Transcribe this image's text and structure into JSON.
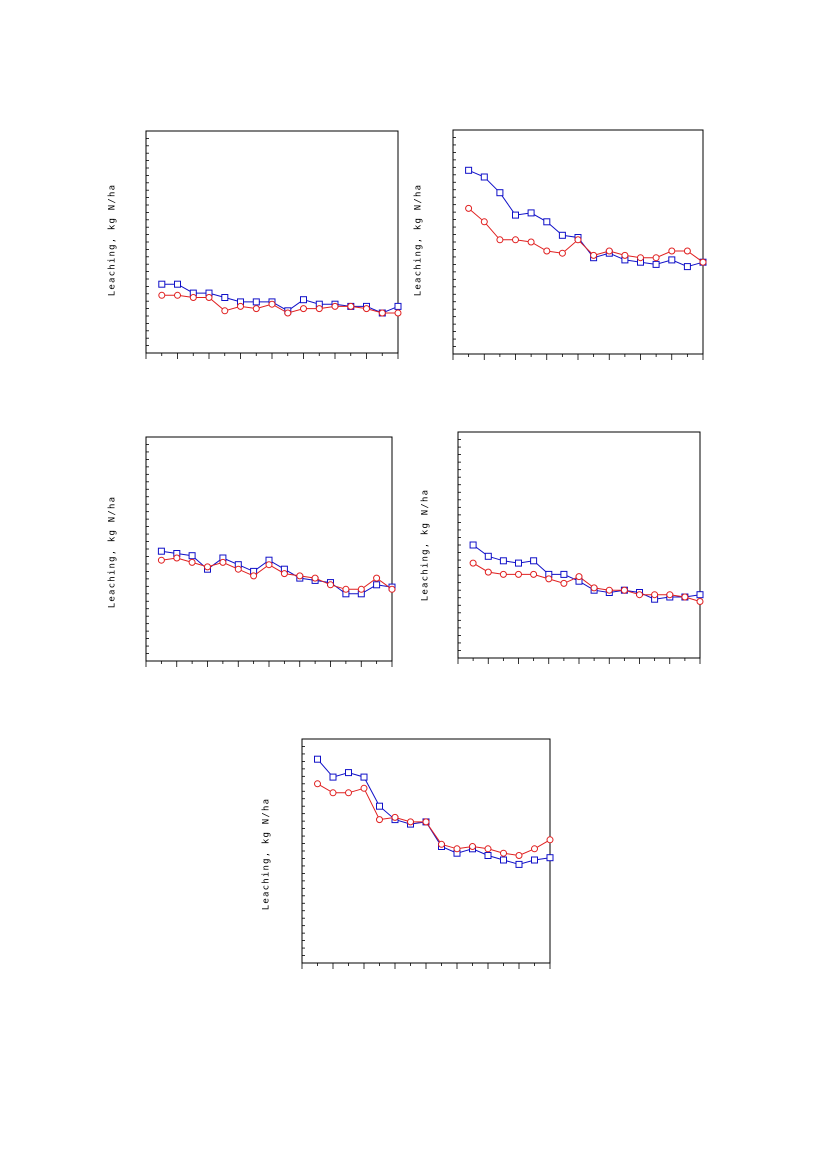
{
  "page": {
    "background": "#ffffff"
  },
  "colors": {
    "series_a": "#1010c8",
    "series_b": "#e02020",
    "frame": "#000000"
  },
  "chart_data": [
    {
      "type": "line",
      "ylabel": "Leaching, kg N/ha",
      "xlim": [
        0,
        16
      ],
      "ylim": [
        0,
        100
      ],
      "x": [
        1,
        2,
        3,
        4,
        5,
        6,
        7,
        8,
        9,
        10,
        11,
        12,
        13,
        14,
        15,
        16
      ],
      "series": [
        {
          "marker": "square",
          "color": "#1010c8",
          "values": [
            31,
            31,
            27,
            27,
            25,
            23,
            23,
            23,
            19,
            24,
            22,
            22,
            21,
            21,
            18,
            21
          ]
        },
        {
          "marker": "circle",
          "color": "#e02020",
          "values": [
            26,
            26,
            25,
            25,
            19,
            21,
            20,
            22,
            18,
            20,
            20,
            21,
            21,
            20,
            18,
            18
          ]
        }
      ]
    },
    {
      "type": "line",
      "ylabel": "Leaching, kg N/ha",
      "xlim": [
        0,
        16
      ],
      "ylim": [
        0,
        100
      ],
      "x": [
        1,
        2,
        3,
        4,
        5,
        6,
        7,
        8,
        9,
        10,
        11,
        12,
        13,
        14,
        15,
        16
      ],
      "series": [
        {
          "marker": "square",
          "color": "#1010c8",
          "values": [
            82,
            79,
            72,
            62,
            63,
            59,
            53,
            52,
            43,
            45,
            42,
            41,
            40,
            42,
            39,
            41
          ]
        },
        {
          "marker": "circle",
          "color": "#e02020",
          "values": [
            65,
            59,
            51,
            51,
            50,
            46,
            45,
            51,
            44,
            46,
            44,
            43,
            43,
            46,
            46,
            41
          ]
        }
      ]
    },
    {
      "type": "line",
      "ylabel": "Leaching, kg N/ha",
      "xlim": [
        0,
        16
      ],
      "ylim": [
        0,
        100
      ],
      "x": [
        1,
        2,
        3,
        4,
        5,
        6,
        7,
        8,
        9,
        10,
        11,
        12,
        13,
        14,
        15,
        16
      ],
      "series": [
        {
          "marker": "square",
          "color": "#1010c8",
          "values": [
            49,
            48,
            47,
            41,
            46,
            43,
            40,
            45,
            41,
            37,
            36,
            35,
            30,
            30,
            34,
            33
          ]
        },
        {
          "marker": "circle",
          "color": "#e02020",
          "values": [
            45,
            46,
            44,
            42,
            44,
            41,
            38,
            43,
            39,
            38,
            37,
            34,
            32,
            32,
            37,
            32
          ]
        }
      ]
    },
    {
      "type": "line",
      "ylabel": "Leaching, kg N/ha",
      "xlim": [
        0,
        16
      ],
      "ylim": [
        0,
        100
      ],
      "x": [
        1,
        2,
        3,
        4,
        5,
        6,
        7,
        8,
        9,
        10,
        11,
        12,
        13,
        14,
        15,
        16
      ],
      "series": [
        {
          "marker": "square",
          "color": "#1010c8",
          "values": [
            50,
            45,
            43,
            42,
            43,
            37,
            37,
            34,
            30,
            29,
            30,
            29,
            26,
            27,
            27,
            28
          ]
        },
        {
          "marker": "circle",
          "color": "#e02020",
          "values": [
            42,
            38,
            37,
            37,
            37,
            35,
            33,
            36,
            31,
            30,
            30,
            28,
            28,
            28,
            27,
            25
          ]
        }
      ]
    },
    {
      "type": "line",
      "ylabel": "Leaching, kg N/ha",
      "xlim": [
        0,
        16
      ],
      "ylim": [
        0,
        100
      ],
      "x": [
        1,
        2,
        3,
        4,
        5,
        6,
        7,
        8,
        9,
        10,
        11,
        12,
        13,
        14,
        15,
        16
      ],
      "series": [
        {
          "marker": "square",
          "color": "#1010c8",
          "values": [
            91,
            83,
            85,
            83,
            70,
            64,
            62,
            63,
            52,
            49,
            51,
            48,
            46,
            44,
            46,
            47
          ]
        },
        {
          "marker": "circle",
          "color": "#e02020",
          "values": [
            80,
            76,
            76,
            78,
            64,
            65,
            63,
            63,
            53,
            51,
            52,
            51,
            49,
            48,
            51,
            55
          ]
        }
      ]
    }
  ]
}
